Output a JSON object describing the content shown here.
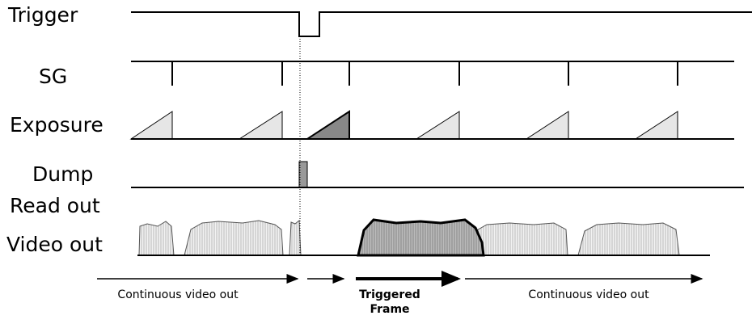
{
  "signals": [
    "Trigger",
    "SG",
    "Exposure",
    "Dump",
    "Read out",
    "Video out"
  ],
  "annotations": {
    "continuous_before": "Continuous video out",
    "triggered": "Triggered Frame",
    "continuous_after": "Continuous video out"
  }
}
